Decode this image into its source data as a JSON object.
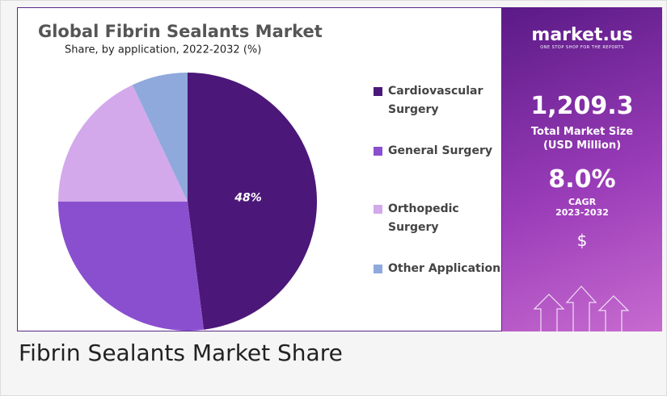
{
  "chart_data": {
    "type": "pie",
    "title": "Global Fibrin Sealants Market",
    "subtitle": "Share, by application, 2022-2032 (%)",
    "categories": [
      "Cardiovascular Surgery",
      "General Surgery",
      "Orthopedic Surgery",
      "Other Applications"
    ],
    "values": [
      48,
      27,
      18,
      7
    ],
    "value_labels": [
      "48%",
      null,
      null,
      null
    ],
    "colors": [
      "#4b1778",
      "#8a4fcf",
      "#d3a9eb",
      "#8fa9dc"
    ]
  },
  "panel": {
    "brand": "market.us",
    "tagline": "ONE STOP SHOP FOR THE REPORTS",
    "market_size": "1,209.3",
    "market_size_label": "Total Market Size (USD Million)",
    "cagr": "8.0%",
    "cagr_label": "CAGR",
    "cagr_period": "2023-2032",
    "symbol": "$"
  },
  "caption": "Fibrin Sealants Market Share"
}
